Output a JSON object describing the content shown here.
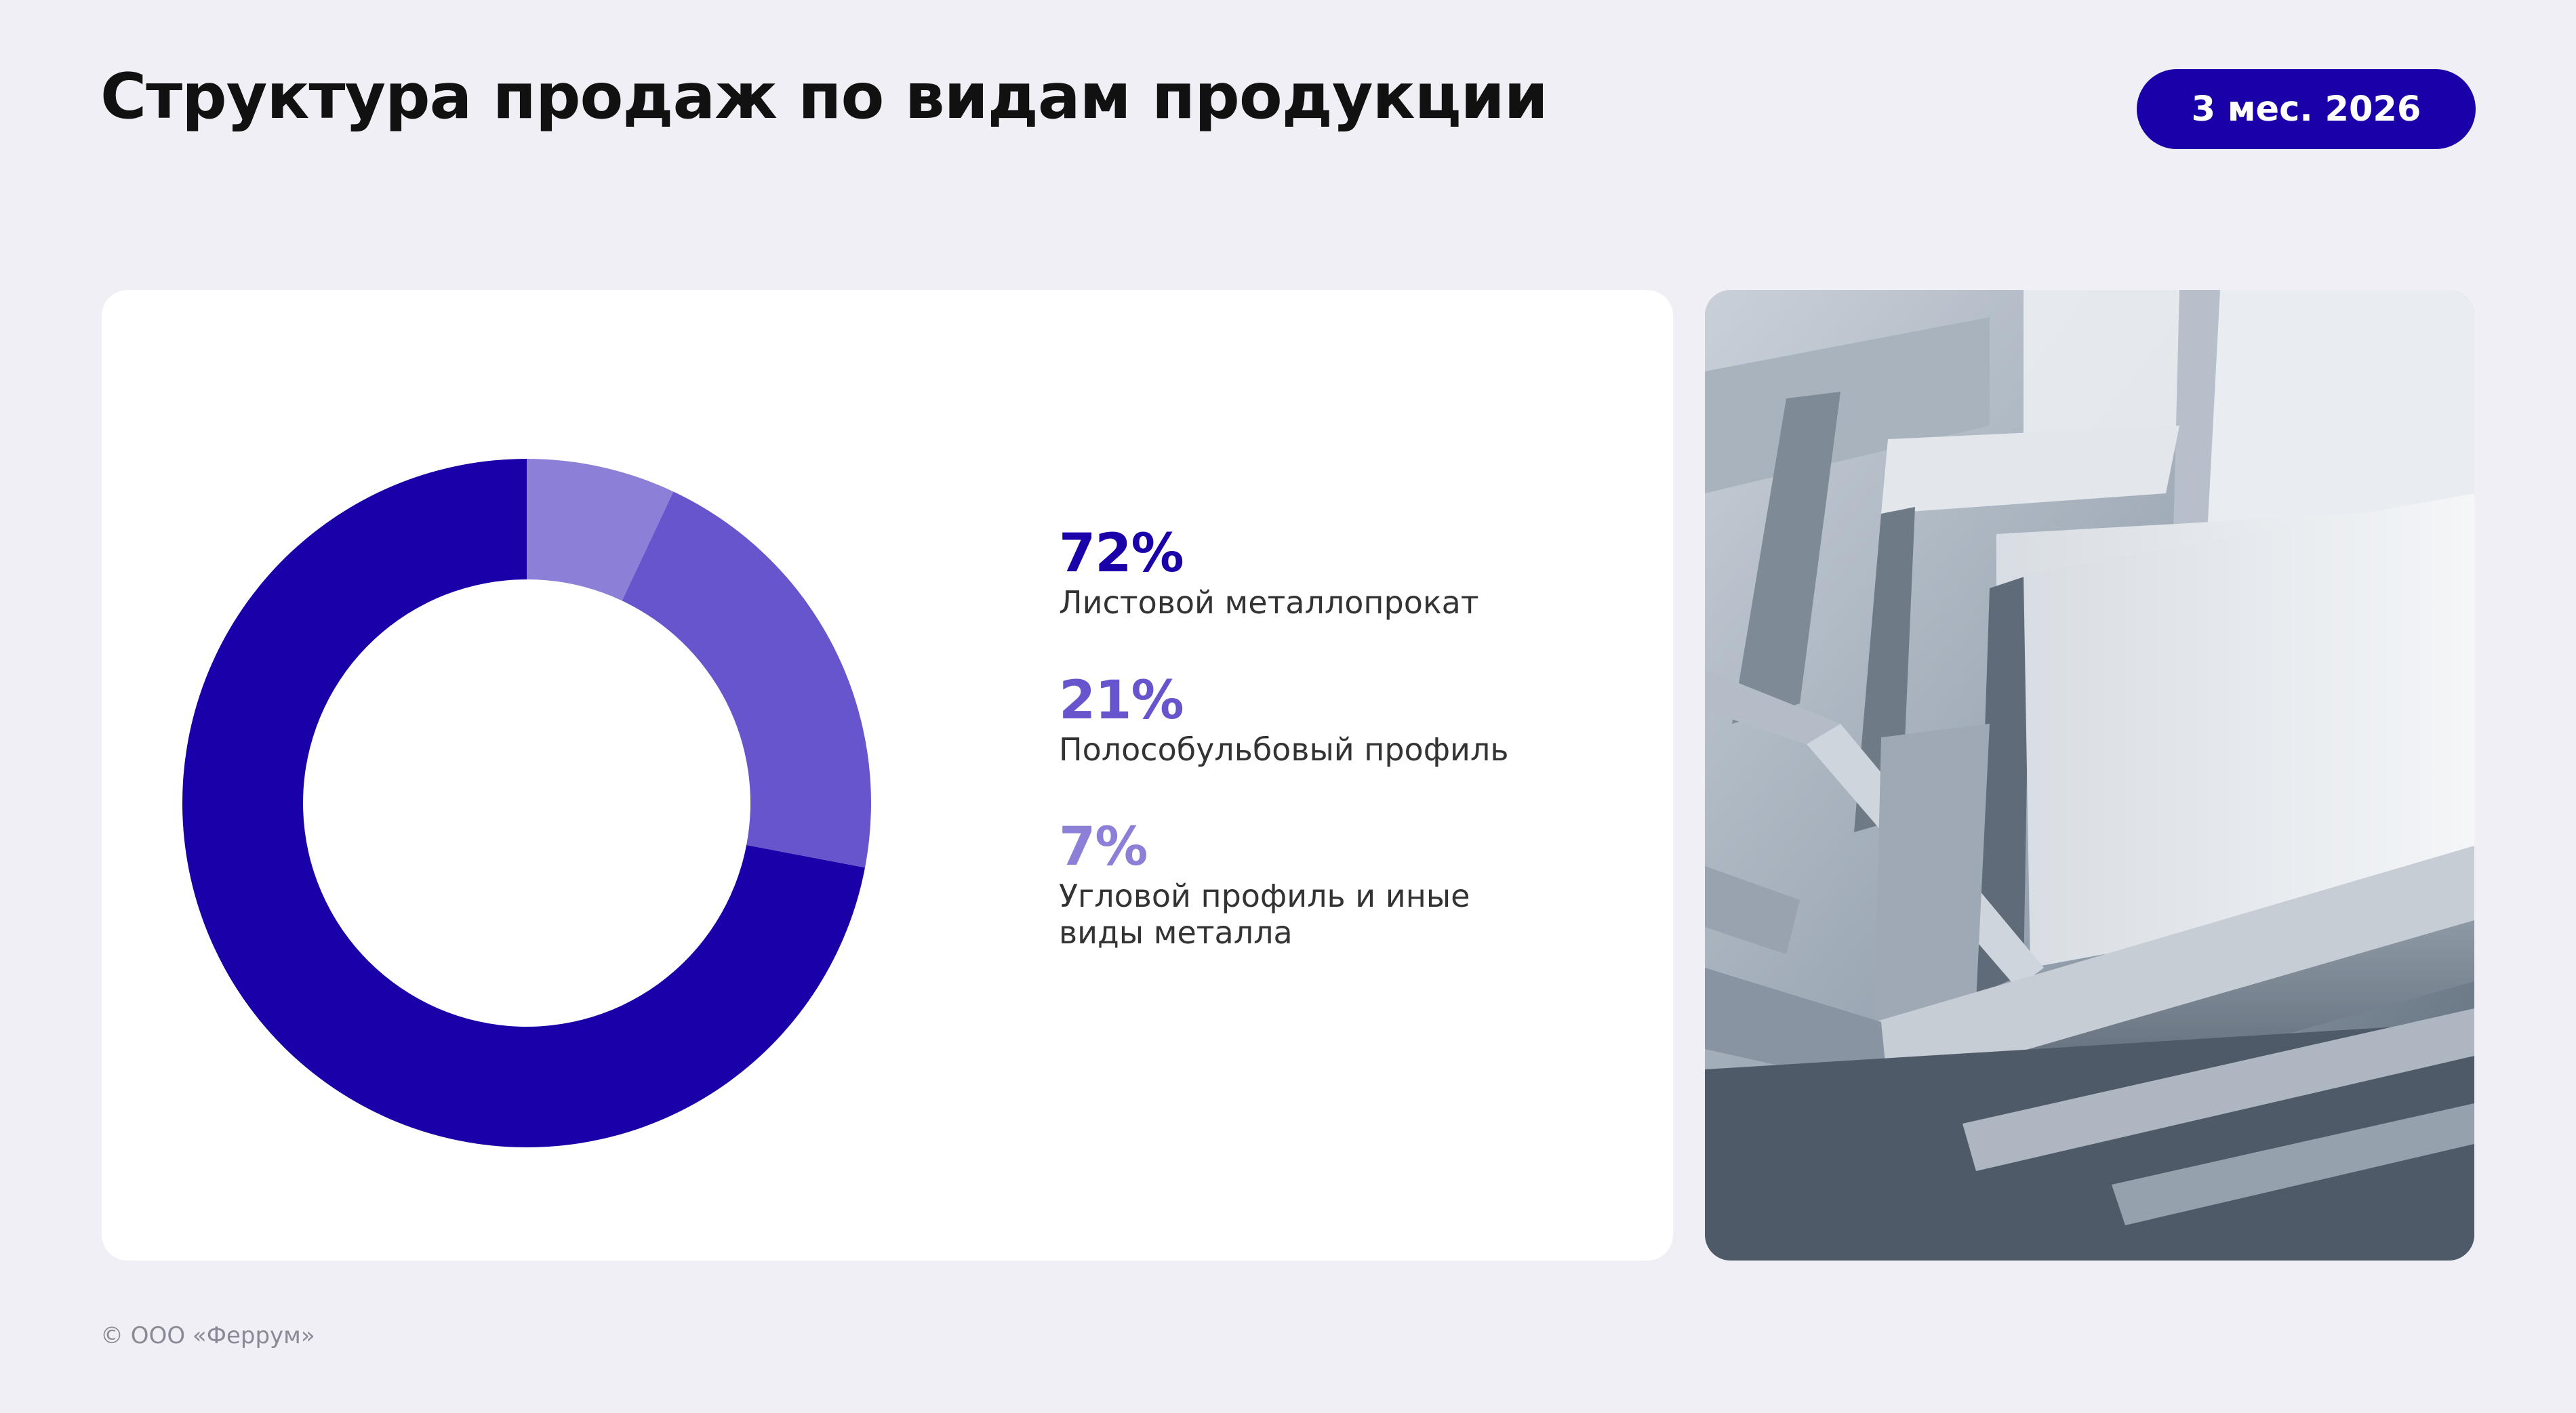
{
  "header": {
    "title": "Структура продаж по видам продукции",
    "period_badge": "3 мес. 2026"
  },
  "chart_data": {
    "type": "pie",
    "donut": true,
    "start": "12 o'clock, counterclockwise",
    "series": [
      {
        "label": "Листовой металлопрокат",
        "value": 72,
        "display": "72%",
        "color": "#1a00a8"
      },
      {
        "label": "Полособульбовый профиль",
        "value": 21,
        "display": "21%",
        "color": "#6655cc"
      },
      {
        "label": "Угловой профиль и иные\nвиды металла",
        "value": 7,
        "display": "7%",
        "color": "#8c7fd8"
      }
    ],
    "legend_position": "right"
  },
  "photo": {
    "subject": "stacked steel angle profiles",
    "palette": [
      "#dfe4ea",
      "#9aa6b3",
      "#5d6a78"
    ]
  },
  "footer": {
    "copyright": "© ООО «Феррум»"
  }
}
